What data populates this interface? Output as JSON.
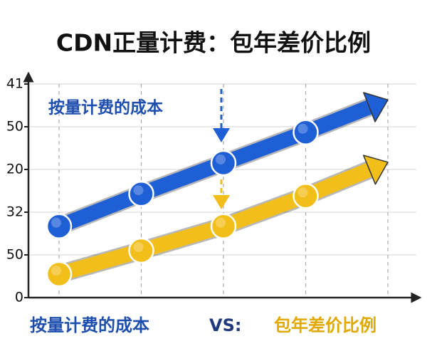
{
  "chart_data": {
    "type": "line",
    "title": "CDN正量计费：包年差价比例",
    "annotation": "VS:",
    "categories": [
      null,
      null,
      null,
      null,
      null
    ],
    "series": [
      {
        "name": "按量计费的成本",
        "color": "#1f5fd6",
        "values": [
          1.67,
          2.43,
          3.15,
          3.87,
          4.63
        ]
      },
      {
        "name": "包年差价比例",
        "color": "#f2be1a",
        "values": [
          0.55,
          1.1,
          1.67,
          2.38,
          3.17
        ]
      }
    ],
    "ylim": [
      0,
      5
    ],
    "yticks": [
      0,
      {
        "value": 1,
        "label": "50"
      },
      {
        "value": 2,
        "label": "32"
      },
      {
        "value": 3,
        "label": "20"
      },
      {
        "value": 4,
        "label": "50"
      },
      {
        "value": 5,
        "label": "41"
      }
    ],
    "grid": true
  }
}
